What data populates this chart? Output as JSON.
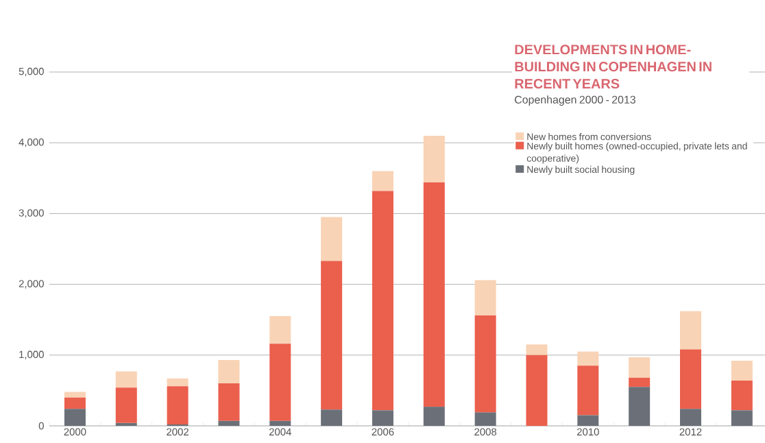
{
  "chart_data": {
    "type": "bar",
    "title": "DEVELOPMENTS IN HOME-BUILDING IN COPENHAGEN IN RECENT YEARS",
    "subtitle": "Copenhagen 2000 - 2013",
    "categories": [
      "2000",
      null,
      "2002",
      null,
      "2004",
      null,
      "2006",
      null,
      "2008",
      null,
      "2010",
      null,
      "2012",
      null
    ],
    "stacked": true,
    "series": [
      {
        "name": "Newly built social housing",
        "color": "#6b7078",
        "values": [
          240,
          40,
          20,
          70,
          70,
          230,
          220,
          270,
          190,
          0,
          150,
          550,
          240,
          220
        ]
      },
      {
        "name": "Newly built homes (owned-occupied, private lets and cooperative)",
        "color": "#eb5f4d",
        "values": [
          160,
          500,
          540,
          530,
          1090,
          2100,
          3100,
          3170,
          1370,
          1000,
          700,
          130,
          840,
          420
        ]
      },
      {
        "name": "New homes from conversions",
        "color": "#f9d3b5",
        "values": [
          80,
          230,
          110,
          330,
          390,
          620,
          280,
          660,
          500,
          150,
          200,
          290,
          540,
          280
        ]
      }
    ],
    "ylim": [
      0,
      5000
    ],
    "yticks": [
      0,
      {
        "value": 1000,
        "label": "1,000"
      },
      {
        "value": 2000,
        "label": "2,000"
      },
      {
        "value": 3000,
        "label": "3,000"
      },
      {
        "value": 4000,
        "label": "4,000"
      },
      {
        "value": 5000,
        "label": "5,000"
      }
    ],
    "grid": "y",
    "legend": "top right"
  }
}
